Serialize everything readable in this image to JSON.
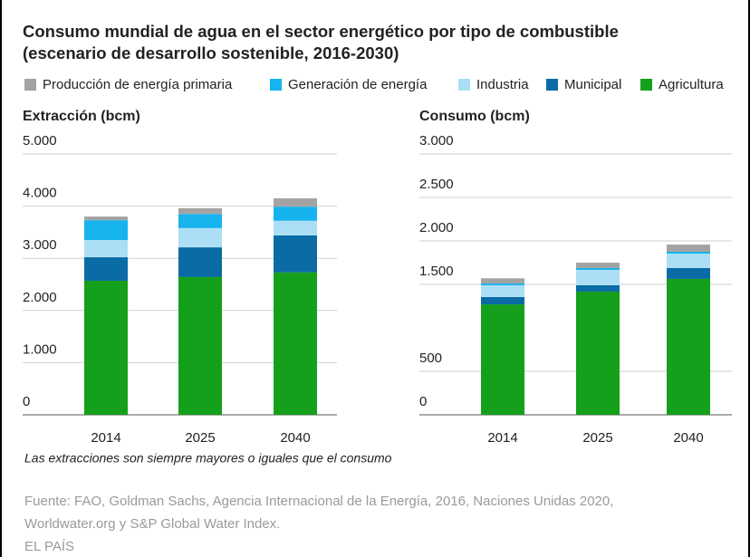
{
  "header": {
    "title_lines": [
      "Consumo mundial de agua en el sector energético por tipo de combustible",
      "(escenario de desarrollo sostenible, 2016-2030)"
    ]
  },
  "chart_data": [
    {
      "type": "bar",
      "stacked": true,
      "title": "Extracción (bcm)",
      "categories": [
        "2014",
        "2025",
        "2040"
      ],
      "series": [
        {
          "name": "Producción de energía primaria",
          "color": "#a3a3a3",
          "values": [
            70,
            110,
            160
          ]
        },
        {
          "name": "Generación de energía",
          "color": "#16b3ef",
          "values": [
            380,
            270,
            270
          ]
        },
        {
          "name": "Industria",
          "color": "#acdff5",
          "values": [
            330,
            370,
            280
          ]
        },
        {
          "name": "Municipal",
          "color": "#0b6ba4",
          "values": [
            450,
            570,
            710
          ]
        },
        {
          "name": "Agricultura",
          "color": "#15a01c",
          "values": [
            2570,
            2640,
            2730
          ]
        }
      ],
      "ylim": [
        0,
        5000
      ],
      "yticks": [
        {
          "value": 0,
          "label": "0"
        },
        {
          "value": 1000,
          "label": "1.000"
        },
        {
          "value": 2000,
          "label": "2.000"
        },
        {
          "value": 3000,
          "label": "3.000"
        },
        {
          "value": 4000,
          "label": "4.000"
        },
        {
          "value": 5000,
          "label": "5.000"
        }
      ],
      "grid": true
    },
    {
      "type": "bar",
      "stacked": true,
      "title": "Consumo (bcm)",
      "categories": [
        "2014",
        "2025",
        "2040"
      ],
      "series": [
        {
          "color": "#a3a3a3",
          "values": [
            60,
            62,
            83
          ]
        },
        {
          "color": "#16b3ef",
          "values": [
            20,
            21,
            21
          ]
        },
        {
          "color": "#acdff5",
          "values": [
            135,
            177,
            166
          ]
        },
        {
          "color": "#0b6ba4",
          "values": [
            85,
            73,
            125
          ]
        },
        {
          "color": "#15a01c",
          "values": [
            1270,
            1417,
            1563
          ]
        }
      ],
      "ylim": [
        0,
        3000
      ],
      "yticks": [
        0,
        500,
        {
          "value": 1500,
          "label": "1.500"
        },
        {
          "value": 2000,
          "label": "2.000"
        },
        {
          "value": 2500,
          "label": "2.500"
        },
        {
          "value": 3000,
          "label": "3.000"
        }
      ],
      "grid": true
    }
  ],
  "footer": {
    "note": "Las extracciones son siempre mayores o iguales que el consumo",
    "source_lines": [
      "Fuente: FAO, Goldman Sachs, Agencia Internacional de la Energía, 2016, Naciones Unidas 2020,",
      "Worldwater.org y S&P Global Water Index."
    ],
    "credit": "EL PAÍS"
  }
}
